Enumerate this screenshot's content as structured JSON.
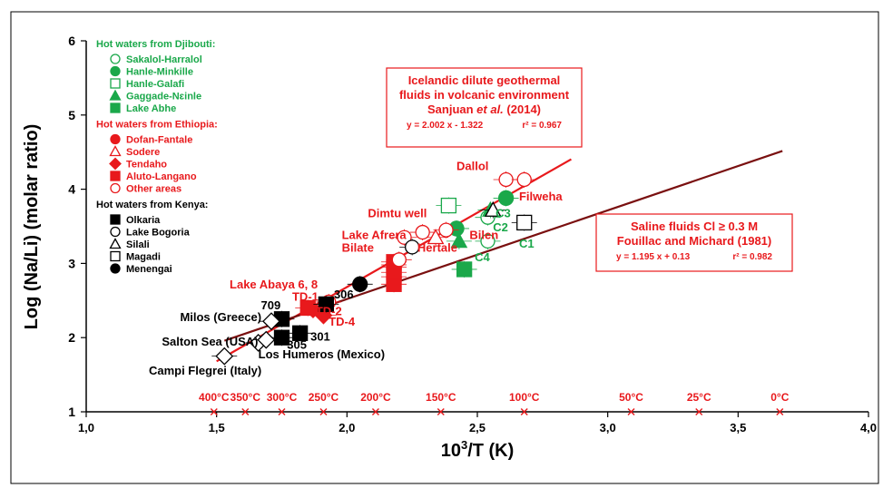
{
  "chart_data": {
    "type": "scatter",
    "title": "",
    "xlabel": "10³/T (K)",
    "ylabel": "Log (Na/Li) (molar ratio)",
    "xlim": [
      1.0,
      4.0
    ],
    "ylim": [
      1,
      6
    ],
    "x_ticks": [
      "1,0",
      "1,5",
      "2,0",
      "2,5",
      "3,0",
      "3,5",
      "4,0"
    ],
    "y_ticks": [
      "1",
      "2",
      "3",
      "4",
      "5",
      "6"
    ],
    "grid": false,
    "legend_placement": "top-left",
    "colors": {
      "djibouti": "#1aa84a",
      "ethiopia": "#e8191c",
      "kenya": "#000000",
      "iceland_line": "#e8191c",
      "saline_line": "#7a1010"
    },
    "legend": {
      "groups": [
        {
          "title": "Hot waters from Djibouti:",
          "color": "#1aa84a",
          "entries": [
            {
              "label": "Sakalol-Harralol",
              "marker": "open-circle"
            },
            {
              "label": "Hanle-Minkille",
              "marker": "filled-circle"
            },
            {
              "label": "Hanle-Galafi",
              "marker": "open-square"
            },
            {
              "label": "Gaggade-Nɛinle",
              "marker": "filled-triangle"
            },
            {
              "label": "Lake Abhe",
              "marker": "filled-square"
            }
          ]
        },
        {
          "title": "Hot waters from Ethiopia:",
          "color": "#e8191c",
          "entries": [
            {
              "label": "Dofan-Fantale",
              "marker": "filled-circle"
            },
            {
              "label": "Sodere",
              "marker": "open-triangle"
            },
            {
              "label": "Tendaho",
              "marker": "filled-diamond"
            },
            {
              "label": "Aluto-Langano",
              "marker": "filled-square"
            },
            {
              "label": "Other areas",
              "marker": "open-circle"
            }
          ]
        },
        {
          "title": "Hot waters from Kenya:",
          "color": "#000000",
          "entries": [
            {
              "label": "Olkaria",
              "marker": "filled-square"
            },
            {
              "label": "Lake Bogoria",
              "marker": "open-circle"
            },
            {
              "label": "Silali",
              "marker": "open-triangle"
            },
            {
              "label": "Magadi",
              "marker": "open-square"
            },
            {
              "label": "Menengai",
              "marker": "filled-circle"
            }
          ]
        }
      ]
    },
    "boxes": [
      {
        "lines": [
          "Icelandic dilute geothermal",
          "fluids in volcanic environment",
          "Sanjuan et al. (2014)"
        ],
        "equation": "y = 2.002 x - 1.322",
        "r2": "r² = 0.967"
      },
      {
        "lines": [
          "Saline fluids Cl ≥ 0.3 M",
          "Fouillac and Michard (1981)"
        ],
        "equation": "y = 1.195 x + 0.13",
        "r2": "r² = 0.982"
      }
    ],
    "lines": [
      {
        "name": "Icelandic",
        "slope": 2.002,
        "intercept": -1.322,
        "x_range": [
          1.5,
          2.86
        ],
        "color": "#e8191c"
      },
      {
        "name": "Saline",
        "slope": 1.195,
        "intercept": 0.13,
        "x_range": [
          1.53,
          3.67
        ],
        "color": "#7a1010"
      }
    ],
    "temperature_ticks": [
      {
        "label": "400°C",
        "x": 1.49
      },
      {
        "label": "350°C",
        "x": 1.61
      },
      {
        "label": "300°C",
        "x": 1.75
      },
      {
        "label": "250°C",
        "x": 1.91
      },
      {
        "label": "200°C",
        "x": 2.11
      },
      {
        "label": "150°C",
        "x": 2.36
      },
      {
        "label": "100°C",
        "x": 2.68
      },
      {
        "label": "50°C",
        "x": 3.09
      },
      {
        "label": "25°C",
        "x": 3.35
      },
      {
        "label": "0°C",
        "x": 3.66
      }
    ],
    "series": [
      {
        "region": "djibouti",
        "marker": "open-circle",
        "points": [
          [
            2.54,
            3.62
          ],
          [
            2.54,
            3.3
          ]
        ]
      },
      {
        "region": "djibouti",
        "marker": "filled-circle",
        "points": [
          [
            2.61,
            3.88
          ],
          [
            2.42,
            3.47
          ]
        ]
      },
      {
        "region": "djibouti",
        "marker": "open-square",
        "points": [
          [
            2.39,
            3.78
          ]
        ]
      },
      {
        "region": "djibouti",
        "marker": "filled-triangle",
        "points": [
          [
            2.43,
            3.3
          ],
          [
            2.55,
            3.72
          ]
        ]
      },
      {
        "region": "djibouti",
        "marker": "filled-square",
        "points": [
          [
            2.45,
            2.92
          ]
        ]
      },
      {
        "region": "ethiopia",
        "marker": "filled-circle",
        "points": [
          [
            2.18,
            2.82
          ],
          [
            2.18,
            2.98
          ]
        ]
      },
      {
        "region": "ethiopia",
        "marker": "open-triangle",
        "points": [
          [
            2.34,
            3.35
          ]
        ]
      },
      {
        "region": "ethiopia",
        "marker": "filled-diamond",
        "points": [
          [
            1.87,
            2.38
          ],
          [
            1.91,
            2.3
          ]
        ]
      },
      {
        "region": "ethiopia",
        "marker": "filled-square",
        "points": [
          [
            2.18,
            2.72
          ],
          [
            2.18,
            2.88
          ],
          [
            2.18,
            2.95
          ],
          [
            2.18,
            3.02
          ],
          [
            1.85,
            2.4
          ]
        ]
      },
      {
        "region": "ethiopia",
        "marker": "open-circle",
        "points": [
          [
            2.22,
            3.35
          ],
          [
            2.29,
            3.42
          ],
          [
            2.38,
            3.45
          ],
          [
            2.61,
            4.13
          ],
          [
            2.68,
            4.13
          ],
          [
            2.2,
            3.05
          ],
          [
            1.93,
            2.48
          ]
        ]
      },
      {
        "region": "kenya",
        "marker": "filled-square",
        "points": [
          [
            1.75,
            2.25
          ],
          [
            1.75,
            2.0
          ],
          [
            1.82,
            2.06
          ],
          [
            1.92,
            2.45
          ]
        ]
      },
      {
        "region": "kenya",
        "marker": "open-circle",
        "points": [
          [
            2.25,
            3.22
          ]
        ]
      },
      {
        "region": "kenya",
        "marker": "open-triangle",
        "points": [
          [
            2.56,
            3.72
          ]
        ]
      },
      {
        "region": "kenya",
        "marker": "open-square",
        "points": [
          [
            2.68,
            3.55
          ]
        ]
      },
      {
        "region": "kenya",
        "marker": "filled-circle",
        "points": [
          [
            2.05,
            2.72
          ]
        ]
      },
      {
        "region": "other",
        "marker": "open-diamond",
        "points": [
          [
            1.53,
            1.75
          ],
          [
            1.66,
            1.93
          ],
          [
            1.69,
            1.97
          ],
          [
            1.71,
            2.22
          ]
        ]
      }
    ],
    "annotations": [
      {
        "text": "Dallol",
        "x": 2.42,
        "y": 4.26,
        "color": "#e8191c"
      },
      {
        "text": "Filweha",
        "x": 2.66,
        "y": 3.85,
        "color": "#e8191c"
      },
      {
        "text": "Dimtu well",
        "x": 2.08,
        "y": 3.62,
        "color": "#e8191c"
      },
      {
        "text": "Bilen",
        "x": 2.47,
        "y": 3.33,
        "color": "#e8191c"
      },
      {
        "text": "Lake Afrera",
        "x": 1.98,
        "y": 3.33,
        "color": "#e8191c"
      },
      {
        "text": "Bilate",
        "x": 1.98,
        "y": 3.16,
        "color": "#e8191c"
      },
      {
        "text": "Hertale",
        "x": 2.27,
        "y": 3.16,
        "color": "#e8191c"
      },
      {
        "text": "C3",
        "x": 2.57,
        "y": 3.62,
        "color": "#1aa84a"
      },
      {
        "text": "C2",
        "x": 2.56,
        "y": 3.43,
        "color": "#1aa84a"
      },
      {
        "text": "C1",
        "x": 2.66,
        "y": 3.21,
        "color": "#1aa84a"
      },
      {
        "text": "C4",
        "x": 2.49,
        "y": 3.03,
        "color": "#1aa84a"
      },
      {
        "text": "Lake Abaya 6, 8",
        "x": 1.55,
        "y": 2.66,
        "color": "#e8191c"
      },
      {
        "text": "TD-1",
        "x": 1.79,
        "y": 2.5,
        "color": "#e8191c"
      },
      {
        "text": "TD-2",
        "x": 1.88,
        "y": 2.3,
        "color": "#e8191c"
      },
      {
        "text": "TD-4",
        "x": 1.93,
        "y": 2.16,
        "color": "#e8191c"
      },
      {
        "text": "306",
        "x": 1.95,
        "y": 2.53,
        "color": "#000000"
      },
      {
        "text": "709",
        "x": 1.67,
        "y": 2.38,
        "color": "#000000"
      },
      {
        "text": "301",
        "x": 1.86,
        "y": 1.96,
        "color": "#000000"
      },
      {
        "text": "305",
        "x": 1.77,
        "y": 1.85,
        "color": "#000000"
      },
      {
        "text": "Milos (Greece)",
        "x": 1.36,
        "y": 2.22,
        "color": "#000000"
      },
      {
        "text": "Salton Sea (USA)",
        "x": 1.29,
        "y": 1.89,
        "color": "#000000"
      },
      {
        "text": "Los Humeros (Mexico)",
        "x": 1.66,
        "y": 1.72,
        "color": "#000000"
      },
      {
        "text": "Campi Flegrei (Italy)",
        "x": 1.24,
        "y": 1.5,
        "color": "#000000"
      }
    ]
  }
}
